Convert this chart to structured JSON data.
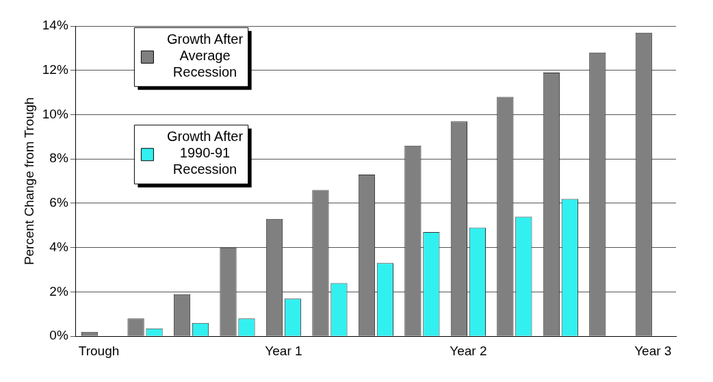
{
  "chart_data": {
    "type": "bar",
    "ylabel": "Percent Change from Trough",
    "categories": [
      "Trough",
      null,
      null,
      null,
      "Year 1",
      null,
      null,
      null,
      "Year 2",
      null,
      null,
      null,
      "Year 3"
    ],
    "series": [
      {
        "name": "Growth After Average Recession",
        "color": "#808080",
        "values": [
          0.2,
          0.8,
          1.9,
          4.0,
          5.3,
          6.6,
          7.3,
          8.6,
          9.7,
          10.8,
          11.9,
          12.8,
          13.7
        ]
      },
      {
        "name": "Growth After 1990-91 Recession",
        "color": "#33f0f0",
        "values": [
          0,
          0.35,
          0.6,
          0.8,
          1.7,
          2.4,
          3.3,
          4.7,
          4.9,
          5.4,
          6.2,
          null,
          null
        ]
      }
    ],
    "ylim": [
      0,
      14
    ],
    "yticks": [
      {
        "value": 0,
        "label": "0%"
      },
      {
        "value": 2,
        "label": "2%"
      },
      {
        "value": 4,
        "label": "4%"
      },
      {
        "value": 6,
        "label": "6%"
      },
      {
        "value": 8,
        "label": "8%"
      },
      {
        "value": 10,
        "label": "10%"
      },
      {
        "value": 12,
        "label": "12%"
      },
      {
        "value": 14,
        "label": "14%"
      }
    ],
    "grid": "y",
    "legend": "top left"
  }
}
